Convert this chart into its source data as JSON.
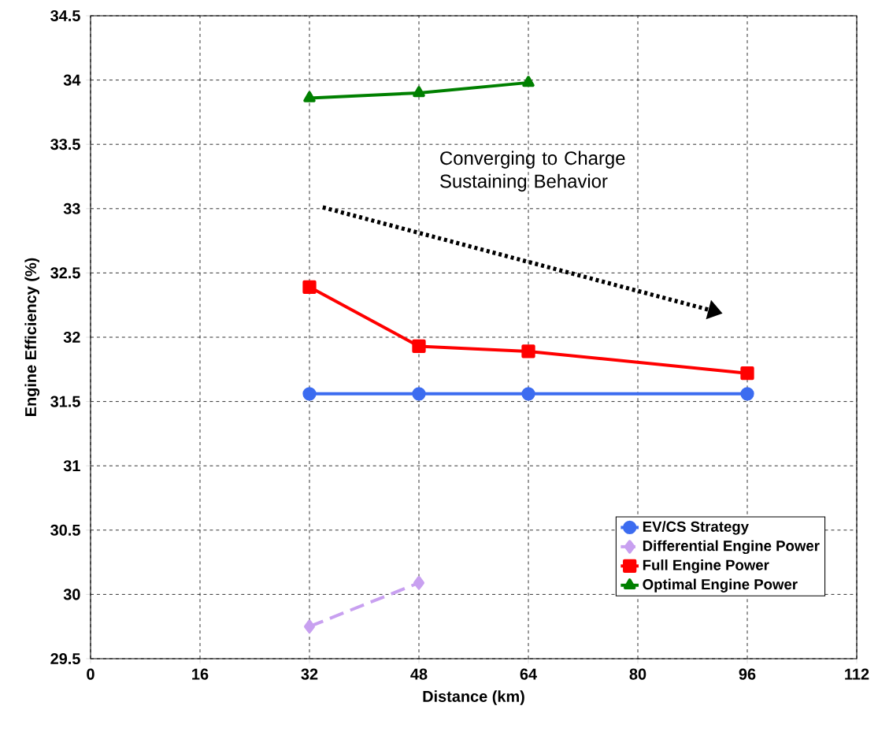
{
  "chart_data": {
    "type": "line",
    "xlabel": "Distance (km)",
    "ylabel": "Engine Efficiency (%)",
    "x": [
      32,
      48,
      64,
      96
    ],
    "series": [
      {
        "name": "EV/CS Strategy",
        "color": "#3c6cf0",
        "marker": "circle",
        "line_style": "solid",
        "values": [
          31.56,
          31.56,
          31.56,
          31.56
        ]
      },
      {
        "name": "Differential Engine Power",
        "color": "#c8a0f0",
        "marker": "diamond",
        "line_style": "dashed",
        "values": [
          29.75,
          30.09,
          null,
          null
        ]
      },
      {
        "name": "Full Engine Power",
        "color": "#ff0000",
        "marker": "square",
        "line_style": "solid",
        "values": [
          32.39,
          31.93,
          31.89,
          31.72
        ]
      },
      {
        "name": "Optimal Engine Power",
        "color": "#008000",
        "marker": "triangle",
        "line_style": "solid",
        "values": [
          33.86,
          33.9,
          33.98,
          null
        ]
      }
    ],
    "xlim": [
      0,
      112
    ],
    "xticks": [
      0,
      16,
      32,
      48,
      64,
      80,
      96,
      112
    ],
    "ylim": [
      29.5,
      34.5
    ],
    "yticks": [
      29.5,
      30,
      30.5,
      31,
      31.5,
      32,
      32.5,
      33,
      33.5,
      34,
      34.5
    ],
    "grid": true,
    "legend": "bottom right",
    "annotations": [
      "Converging to Charge Sustaining Behavior"
    ]
  }
}
